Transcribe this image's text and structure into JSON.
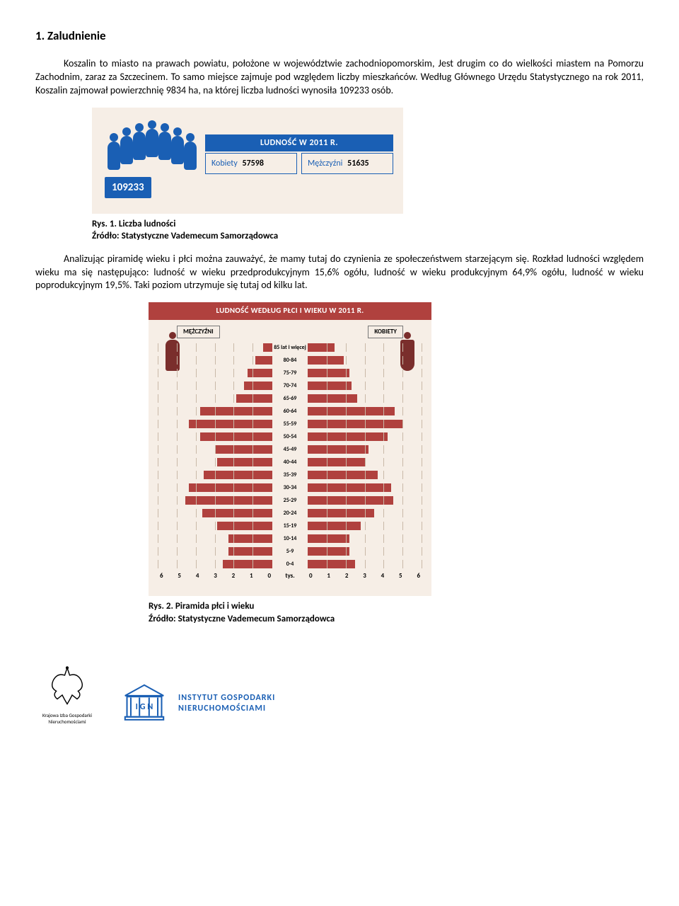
{
  "section": {
    "number": "1.",
    "title": "Zaludnienie"
  },
  "para1": "Koszalin to miasto na prawach powiatu, położone w województwie zachodniopomorskim, Jest drugim co do wielkości miastem na Pomorzu Zachodnim, zaraz za Szczecinem. To samo miejsce zajmuje pod względem liczby mieszkańców. Według Głównego Urzędu Statystycznego na rok 2011, Koszalin zajmował powierzchnię 9834 ha, na której liczba ludności wynosiła 109233 osób.",
  "info1": {
    "total": "109233",
    "header": "LUDNOŚĆ W 2011 R.",
    "leftLabel": "Kobiety",
    "leftValue": "57598",
    "rightLabel": "Mężczyźni",
    "rightValue": "51635",
    "bg": "#f6eee6",
    "accent": "#1a5fb4"
  },
  "caption1": {
    "bold": "Rys. 1. Liczba ludności",
    "src": "Źródło: Statystyczne Vademecum Samorządowca"
  },
  "para2": "Analizując piramidę wieku i płci można zauważyć, że mamy tutaj do czynienia ze społeczeństwem starzejącym się. Rozkład ludności względem wieku ma się następująco: ludność w wieku przedprodukcyjnym 15,6% ogółu, ludność w wieku produkcyjnym 64,9% ogółu, ludność w wieku poprodukcyjnym 19,5%. Taki poziom utrzymuje się tutaj od kilku lat.",
  "pyramid": {
    "title": "LUDNOŚĆ WEDŁUG PŁCI I WIEKU W 2011 R.",
    "leftLabel": "MĘŻCZYŹNI",
    "rightLabel": "KOBIETY",
    "barColor": "#b0413e",
    "bg": "#f6eee6",
    "iconColor": "#7a2e2c",
    "xmax": 6,
    "xticks": [
      6,
      5,
      4,
      3,
      2,
      1,
      0
    ],
    "xticks_r": [
      0,
      1,
      2,
      3,
      4,
      5,
      6
    ],
    "axis_center": "tys.",
    "rows": [
      {
        "age": "85 lat i więcej",
        "m": 0.5,
        "k": 1.4
      },
      {
        "age": "80-84",
        "m": 0.9,
        "k": 1.9
      },
      {
        "age": "75-79",
        "m": 1.3,
        "k": 2.2
      },
      {
        "age": "70-74",
        "m": 1.5,
        "k": 2.3
      },
      {
        "age": "65-69",
        "m": 1.9,
        "k": 2.6
      },
      {
        "age": "60-64",
        "m": 3.8,
        "k": 4.6
      },
      {
        "age": "55-59",
        "m": 4.4,
        "k": 5.0
      },
      {
        "age": "50-54",
        "m": 3.8,
        "k": 4.2
      },
      {
        "age": "45-49",
        "m": 3.0,
        "k": 3.2
      },
      {
        "age": "40-44",
        "m": 2.9,
        "k": 3.0
      },
      {
        "age": "35-39",
        "m": 3.6,
        "k": 3.7
      },
      {
        "age": "30-34",
        "m": 4.4,
        "k": 4.4
      },
      {
        "age": "25-29",
        "m": 4.6,
        "k": 4.5
      },
      {
        "age": "20-24",
        "m": 3.7,
        "k": 3.5
      },
      {
        "age": "15-19",
        "m": 2.9,
        "k": 2.8
      },
      {
        "age": "10-14",
        "m": 2.3,
        "k": 2.2
      },
      {
        "age": "5-9",
        "m": 2.3,
        "k": 2.2
      },
      {
        "age": "0-4",
        "m": 2.6,
        "k": 2.5
      }
    ]
  },
  "caption2": {
    "bold": "Rys. 2. Piramida płci i wieku",
    "src": "Źródło: Statystyczne Vademecum Samorządowca"
  },
  "footer": {
    "logo1_caption": "Krajowa Izba Gospodarki Nieruchomościami",
    "logo2_letters": "I G N",
    "logo2_line1": "INSTYTUT GOSPODARKI",
    "logo2_line2": "NIERUCHOMOŚCIAMI"
  }
}
